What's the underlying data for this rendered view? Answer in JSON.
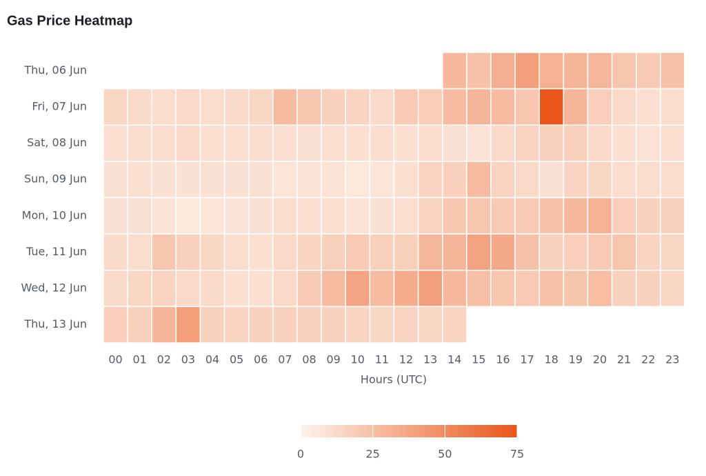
{
  "chart_data": {
    "type": "heatmap",
    "title": "Gas Price Heatmap",
    "x_label": "Hours (UTC)",
    "categories": [
      "00",
      "01",
      "02",
      "03",
      "04",
      "05",
      "06",
      "07",
      "08",
      "09",
      "10",
      "11",
      "12",
      "13",
      "14",
      "15",
      "16",
      "17",
      "18",
      "19",
      "20",
      "21",
      "22",
      "23"
    ],
    "rows": [
      "Thu, 06 Jun",
      "Fri, 07 Jun",
      "Sat, 08 Jun",
      "Sun, 09 Jun",
      "Mon, 10 Jun",
      "Tue, 11 Jun",
      "Wed, 12 Jun",
      "Thu, 13 Jun"
    ],
    "values": [
      [
        null,
        null,
        null,
        null,
        null,
        null,
        null,
        null,
        null,
        null,
        null,
        null,
        null,
        null,
        28,
        24,
        33,
        40,
        32,
        30,
        29,
        22,
        20,
        24
      ],
      [
        14,
        12,
        11,
        13,
        11,
        12,
        14,
        27,
        22,
        17,
        15,
        13,
        20,
        19,
        27,
        30,
        27,
        22,
        75,
        30,
        18,
        13,
        10,
        11
      ],
      [
        10,
        11,
        11,
        13,
        10,
        10,
        11,
        10,
        9,
        10,
        10,
        11,
        10,
        11,
        9,
        8,
        13,
        15,
        17,
        17,
        13,
        10,
        8,
        10
      ],
      [
        9,
        10,
        9,
        9,
        9,
        9,
        9,
        7,
        8,
        8,
        6,
        7,
        10,
        15,
        17,
        27,
        15,
        13,
        9,
        15,
        14,
        11,
        11,
        11
      ],
      [
        9,
        9,
        8,
        6,
        7,
        8,
        9,
        11,
        10,
        10,
        8,
        9,
        10,
        15,
        21,
        22,
        20,
        20,
        24,
        28,
        32,
        18,
        16,
        17
      ],
      [
        12,
        11,
        22,
        17,
        14,
        11,
        10,
        13,
        15,
        17,
        20,
        17,
        17,
        29,
        30,
        39,
        35,
        24,
        16,
        18,
        20,
        22,
        15,
        14
      ],
      [
        12,
        14,
        15,
        13,
        12,
        10,
        10,
        13,
        20,
        27,
        38,
        27,
        34,
        40,
        28,
        25,
        22,
        20,
        24,
        23,
        26,
        16,
        16,
        14
      ],
      [
        18,
        17,
        30,
        41,
        16,
        15,
        16,
        17,
        16,
        16,
        15,
        14,
        15,
        14,
        15,
        null,
        null,
        null,
        null,
        null,
        null,
        null,
        null,
        null
      ]
    ],
    "colorscale": [
      "#fef4ec",
      "#e8561a"
    ],
    "clim": [
      0,
      75
    ],
    "cticks": [
      0,
      25,
      50,
      75
    ]
  }
}
